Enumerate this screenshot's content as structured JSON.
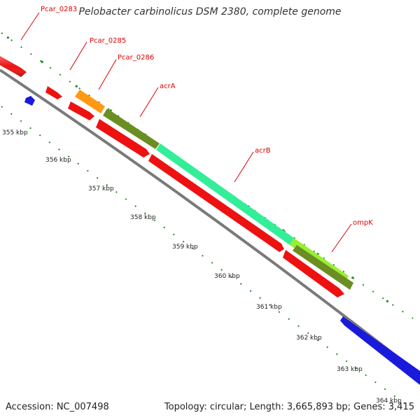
{
  "title": "Pelobacter carbinolicus DSM 2380, complete genome",
  "accession_text": "Accession: NC_007498",
  "topology_text": "Topology: circular; Length: 3,665,893 bp; Genes: 3,415",
  "colors": {
    "backbone": "#8a8a8a",
    "gene_label": "#dd0000",
    "ruler_ticks": "#2a8a2a",
    "red": "#ee1111",
    "blue": "#1a1add",
    "orange": "#ff9911",
    "olive": "#6b8e23",
    "aquamarine": "#33ee99",
    "yellowgreen": "#99ee33"
  },
  "gene_labels": [
    "Pcar_0283",
    "Pcar_0285",
    "Pcar_0286",
    "acrA",
    "acrB",
    "ompK"
  ],
  "scale_labels": [
    "355 kbp",
    "356 kbp",
    "357 kbp",
    "358 kbp",
    "359 kbp",
    "360 kbp",
    "361 kbp",
    "362 kbp",
    "363 kbp",
    "364 kbp"
  ]
}
